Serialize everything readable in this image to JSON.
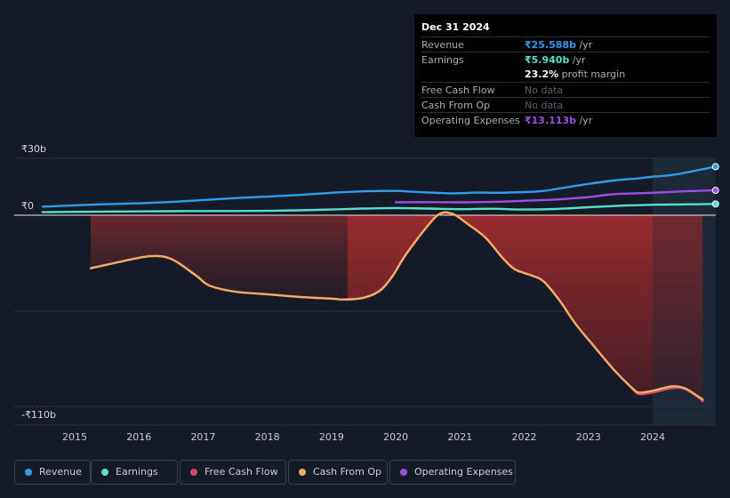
{
  "chart_data": {
    "type": "area",
    "ylabel_top": "₹30b",
    "ylabel_zero": "₹0",
    "ylabel_bottom": "-₹110b",
    "ylim": [
      -110,
      30
    ],
    "xlim": [
      2014.5,
      2024.98
    ],
    "x_ticks": [
      "2015",
      "2016",
      "2017",
      "2018",
      "2019",
      "2020",
      "2021",
      "2022",
      "2023",
      "2024"
    ],
    "forecast_start": 2024.0,
    "grid": true,
    "series": [
      {
        "name": "Revenue",
        "color": "#2e9af0",
        "points": [
          [
            2014.5,
            4.5
          ],
          [
            2015.0,
            5.2
          ],
          [
            2015.5,
            5.8
          ],
          [
            2016.0,
            6.3
          ],
          [
            2016.5,
            7.0
          ],
          [
            2017.0,
            8.0
          ],
          [
            2017.5,
            9.0
          ],
          [
            2018.0,
            9.8
          ],
          [
            2018.5,
            10.7
          ],
          [
            2019.0,
            11.8
          ],
          [
            2019.5,
            12.6
          ],
          [
            2020.0,
            12.8
          ],
          [
            2020.3,
            12.3
          ],
          [
            2020.8,
            11.6
          ],
          [
            2021.0,
            11.6
          ],
          [
            2021.3,
            11.9
          ],
          [
            2021.6,
            11.8
          ],
          [
            2022.0,
            12.2
          ],
          [
            2022.3,
            12.8
          ],
          [
            2022.6,
            14.4
          ],
          [
            2023.0,
            16.5
          ],
          [
            2023.4,
            18.3
          ],
          [
            2023.8,
            19.5
          ],
          [
            2024.0,
            20.3
          ],
          [
            2024.3,
            21.2
          ],
          [
            2024.6,
            23.0
          ],
          [
            2024.98,
            25.588
          ]
        ]
      },
      {
        "name": "Earnings",
        "color": "#55e0c8",
        "points": [
          [
            2014.5,
            1.6
          ],
          [
            2015.0,
            1.8
          ],
          [
            2015.5,
            1.9
          ],
          [
            2016.0,
            2.0
          ],
          [
            2016.5,
            2.1
          ],
          [
            2017.0,
            2.2
          ],
          [
            2017.5,
            2.2
          ],
          [
            2018.0,
            2.3
          ],
          [
            2018.5,
            2.6
          ],
          [
            2019.0,
            3.0
          ],
          [
            2019.5,
            3.5
          ],
          [
            2020.0,
            3.8
          ],
          [
            2020.5,
            3.5
          ],
          [
            2021.0,
            3.2
          ],
          [
            2021.5,
            3.4
          ],
          [
            2022.0,
            3.0
          ],
          [
            2022.5,
            3.3
          ],
          [
            2023.0,
            4.2
          ],
          [
            2023.5,
            5.0
          ],
          [
            2024.0,
            5.5
          ],
          [
            2024.5,
            5.7
          ],
          [
            2024.98,
            5.94
          ]
        ]
      },
      {
        "name": "Free Cash Flow",
        "color": "#d6476a",
        "points": [
          [
            2015.25,
            -30.5
          ],
          [
            2015.5,
            -28.5
          ],
          [
            2016.0,
            -24.5
          ],
          [
            2016.3,
            -23.5
          ],
          [
            2016.55,
            -26.0
          ],
          [
            2016.9,
            -35.0
          ],
          [
            2017.1,
            -40.5
          ],
          [
            2017.5,
            -44.0
          ],
          [
            2018.0,
            -45.5
          ],
          [
            2018.5,
            -47.0
          ],
          [
            2019.0,
            -48.0
          ],
          [
            2019.2,
            -48.5
          ],
          [
            2019.5,
            -47.5
          ],
          [
            2019.75,
            -43.5
          ],
          [
            2019.95,
            -35.0
          ],
          [
            2020.15,
            -23.0
          ],
          [
            2020.5,
            -6.0
          ],
          [
            2020.7,
            1.0
          ],
          [
            2020.9,
            0.5
          ],
          [
            2021.1,
            -4.5
          ],
          [
            2021.4,
            -13.0
          ],
          [
            2021.65,
            -24.0
          ],
          [
            2021.85,
            -31.0
          ],
          [
            2022.1,
            -34.5
          ],
          [
            2022.3,
            -38.0
          ],
          [
            2022.55,
            -49.0
          ],
          [
            2022.8,
            -62.5
          ],
          [
            2023.1,
            -76.0
          ],
          [
            2023.4,
            -89.0
          ],
          [
            2023.7,
            -100.5
          ],
          [
            2023.8,
            -103.0
          ],
          [
            2024.0,
            -102.0
          ],
          [
            2024.3,
            -99.5
          ],
          [
            2024.5,
            -100.0
          ],
          [
            2024.7,
            -104.5
          ],
          [
            2024.78,
            -107.0
          ]
        ]
      },
      {
        "name": "Cash From Op",
        "color": "#f0ad64",
        "points": [
          [
            2015.25,
            -30.5
          ],
          [
            2015.5,
            -28.5
          ],
          [
            2016.0,
            -24.5
          ],
          [
            2016.3,
            -23.5
          ],
          [
            2016.55,
            -26.0
          ],
          [
            2016.9,
            -35.0
          ],
          [
            2017.1,
            -40.5
          ],
          [
            2017.5,
            -44.0
          ],
          [
            2018.0,
            -45.5
          ],
          [
            2018.5,
            -47.0
          ],
          [
            2019.0,
            -48.0
          ],
          [
            2019.2,
            -48.5
          ],
          [
            2019.5,
            -47.5
          ],
          [
            2019.75,
            -43.5
          ],
          [
            2019.95,
            -35.0
          ],
          [
            2020.15,
            -23.0
          ],
          [
            2020.5,
            -6.0
          ],
          [
            2020.7,
            1.0
          ],
          [
            2020.9,
            0.5
          ],
          [
            2021.1,
            -4.5
          ],
          [
            2021.4,
            -13.0
          ],
          [
            2021.65,
            -24.0
          ],
          [
            2021.85,
            -31.0
          ],
          [
            2022.1,
            -34.5
          ],
          [
            2022.3,
            -38.0
          ],
          [
            2022.55,
            -49.0
          ],
          [
            2022.8,
            -62.5
          ],
          [
            2023.1,
            -76.0
          ],
          [
            2023.4,
            -89.0
          ],
          [
            2023.7,
            -100.0
          ],
          [
            2023.8,
            -102.0
          ],
          [
            2024.0,
            -101.0
          ],
          [
            2024.3,
            -98.5
          ],
          [
            2024.5,
            -99.5
          ],
          [
            2024.7,
            -104.0
          ],
          [
            2024.78,
            -106.0
          ]
        ]
      },
      {
        "name": "Operating Expenses",
        "color": "#9b4fe8",
        "points": [
          [
            2020.0,
            6.8
          ],
          [
            2020.5,
            6.9
          ],
          [
            2021.0,
            6.8
          ],
          [
            2021.5,
            7.0
          ],
          [
            2022.0,
            7.6
          ],
          [
            2022.5,
            8.3
          ],
          [
            2023.0,
            9.5
          ],
          [
            2023.3,
            10.8
          ],
          [
            2023.6,
            11.4
          ],
          [
            2024.0,
            11.8
          ],
          [
            2024.5,
            12.6
          ],
          [
            2024.98,
            13.113
          ]
        ]
      }
    ],
    "fill_segments": [
      {
        "x_start": 2015.25,
        "x_end": 2019.25,
        "gradient": "dark"
      },
      {
        "x_start": 2019.25,
        "x_end": 2024.0,
        "gradient": "bright"
      },
      {
        "x_start": 2024.0,
        "x_end": 2024.78,
        "gradient": "forecast"
      }
    ]
  },
  "tooltip": {
    "date": "Dec 31 2024",
    "rows": [
      {
        "label": "Revenue",
        "value": "₹25.588b",
        "unit": " /yr",
        "color": "#2e9af0"
      },
      {
        "label": "Earnings",
        "value": "₹5.940b",
        "unit": " /yr",
        "color": "#55e0c8"
      },
      {
        "label": "",
        "value": "23.2%",
        "unit": " profit margin",
        "color": "#ffffff"
      },
      {
        "label": "Free Cash Flow",
        "value": "No data",
        "unit": "",
        "color": "#5d6168",
        "nodata": true
      },
      {
        "label": "Cash From Op",
        "value": "No data",
        "unit": "",
        "color": "#5d6168",
        "nodata": true
      },
      {
        "label": "Operating Expenses",
        "value": "₹13.113b",
        "unit": " /yr",
        "color": "#9b4fe8"
      }
    ]
  },
  "legend": [
    {
      "label": "Revenue",
      "color": "#2e9af0"
    },
    {
      "label": "Earnings",
      "color": "#55e0c8"
    },
    {
      "label": "Free Cash Flow",
      "color": "#d6476a"
    },
    {
      "label": "Cash From Op",
      "color": "#f0ad64"
    },
    {
      "label": "Operating Expenses",
      "color": "#9b4fe8"
    }
  ]
}
